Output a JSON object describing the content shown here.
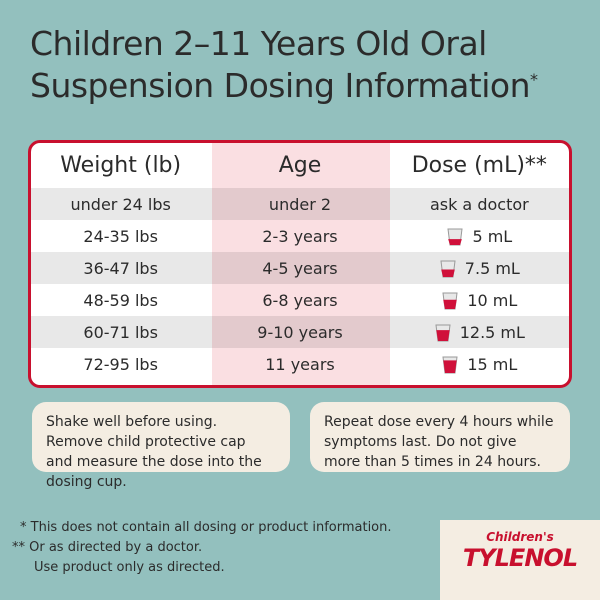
{
  "title": {
    "lines": [
      "Children 2–11 Years Old Oral",
      "Suspension Dosing Information"
    ],
    "mark": "*"
  },
  "table": {
    "header": [
      "Weight (lb)",
      "Age",
      "Dose (mL)**"
    ],
    "rows": [
      [
        "under 24 lbs",
        "under 2",
        "ask a doctor"
      ],
      [
        "24-35 lbs",
        "2-3 years",
        "5 mL"
      ],
      [
        "36-47 lbs",
        "4-5 years",
        "7.5 mL"
      ],
      [
        "48-59 lbs",
        "6-8 years",
        "10 mL"
      ],
      [
        "60-71 lbs",
        "9-10 years",
        "12.5 mL"
      ],
      [
        "72-95 lbs",
        "11 years",
        "15 mL"
      ]
    ]
  },
  "notes": [
    "Shake well before using. Remove child protective cap and measure the dose into the dosing cup.",
    "Repeat dose every 4 hours while symptoms last. Do not give more than 5 times in 24 hours."
  ],
  "footnotes": [
    "* This does not contain all dosing or product information.",
    "** Or as directed by a doctor.",
    "Use product only as directed."
  ],
  "brand": {
    "top": "Children's",
    "name": "TYLENOL"
  }
}
